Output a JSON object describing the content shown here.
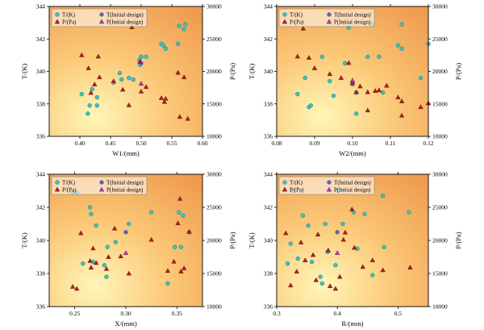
{
  "colors": {
    "temperature_marker": "#3cc4c0",
    "pressure_marker": "#b01e1e",
    "initial_T_marker": "#6a5acd",
    "initial_P_marker": "#b33cc8",
    "bg_inner": "#fff6b8",
    "bg_mid": "#fbc978",
    "bg_outer": "#ef9a4e"
  },
  "chart_data": [
    {
      "type": "scatter",
      "id": "w1",
      "xlabel": "W1/(mm)",
      "ylabel_left": "T/(K)",
      "ylabel_right": "P/(Pa)",
      "xlim": [
        0.35,
        0.6
      ],
      "xticks": [
        0.4,
        0.45,
        0.5,
        0.55,
        0.6
      ],
      "xtick_labels": [
        "0.40",
        "0.45",
        "0.50",
        "0.55",
        "0.60"
      ],
      "ylim_left": [
        336,
        344
      ],
      "yticks_left": [
        336,
        338,
        340,
        342,
        344
      ],
      "ytick_labels_left": [
        "336",
        "338",
        "340",
        "342",
        "344"
      ],
      "ylim_right": [
        10000,
        30000
      ],
      "yticks_right": [
        10000,
        15000,
        20000,
        25000,
        30000
      ],
      "ytick_labels_right": [
        "10000",
        "15000",
        "20000",
        "25000",
        "30000"
      ],
      "legend": [
        "T/(K)",
        "T(Initial design)",
        "P/(Pa)",
        "P(Initial design)"
      ],
      "legend_position": "top-left",
      "series": [
        {
          "name": "T/(K)",
          "axis": "left",
          "marker": "circle",
          "points": [
            [
              0.403,
              338.6
            ],
            [
              0.413,
              337.4
            ],
            [
              0.416,
              337.9
            ],
            [
              0.42,
              338.9
            ],
            [
              0.428,
              338.4
            ],
            [
              0.428,
              337.9
            ],
            [
              0.455,
              339.3
            ],
            [
              0.465,
              339.9
            ],
            [
              0.468,
              339.5
            ],
            [
              0.48,
              339.6
            ],
            [
              0.487,
              339.5
            ],
            [
              0.497,
              340.7
            ],
            [
              0.498,
              340.4
            ],
            [
              0.5,
              340.9
            ],
            [
              0.508,
              340.9
            ],
            [
              0.533,
              341.7
            ],
            [
              0.536,
              341.6
            ],
            [
              0.54,
              341.4
            ],
            [
              0.56,
              341.7
            ],
            [
              0.562,
              342.8
            ],
            [
              0.57,
              342.6
            ],
            [
              0.572,
              342.9
            ]
          ]
        },
        {
          "name": "T(Initial design)",
          "axis": "left",
          "marker": "circle",
          "points": [
            [
              0.5,
              340.5
            ]
          ]
        },
        {
          "name": "P/(Pa)",
          "axis": "right",
          "marker": "triangle",
          "points": [
            [
              0.403,
              22500
            ],
            [
              0.414,
              20500
            ],
            [
              0.418,
              16700
            ],
            [
              0.424,
              18000
            ],
            [
              0.43,
              22300
            ],
            [
              0.432,
              19100
            ],
            [
              0.455,
              18500
            ],
            [
              0.47,
              17200
            ],
            [
              0.48,
              14800
            ],
            [
              0.485,
              26800
            ],
            [
              0.498,
              21500
            ],
            [
              0.5,
              16900
            ],
            [
              0.508,
              17600
            ],
            [
              0.533,
              15900
            ],
            [
              0.538,
              15300
            ],
            [
              0.54,
              15800
            ],
            [
              0.56,
              19800
            ],
            [
              0.563,
              13000
            ],
            [
              0.57,
              19100
            ],
            [
              0.576,
              12700
            ]
          ]
        },
        {
          "name": "P(Initial design)",
          "axis": "right",
          "marker": "triangle",
          "points": [
            [
              0.5,
              18100
            ]
          ]
        }
      ]
    },
    {
      "type": "scatter",
      "id": "w2",
      "xlabel": "W2/(mm)",
      "ylabel_left": "T/(K)",
      "ylabel_right": "P/(Pa)",
      "xlim": [
        0.08,
        0.12
      ],
      "xticks": [
        0.08,
        0.09,
        0.1,
        0.11,
        0.12
      ],
      "xtick_labels": [
        "0.08",
        "0.09",
        "0.10",
        "0.11",
        "0.12"
      ],
      "ylim_left": [
        336,
        344
      ],
      "yticks_left": [
        336,
        338,
        340,
        342,
        344
      ],
      "ytick_labels_left": [
        "336",
        "338",
        "340",
        "342",
        "344"
      ],
      "ylim_right": [
        10000,
        30000
      ],
      "yticks_right": [
        10000,
        15000,
        20000,
        25000,
        30000
      ],
      "ytick_labels_right": [
        "10000",
        "15000",
        "20000",
        "25000",
        "30000"
      ],
      "legend": [
        "T/(K)",
        "T(Initial design)",
        "P/(Pa)",
        "P(Initial design)"
      ],
      "legend_position": "top-left",
      "series": [
        {
          "name": "T/(K)",
          "axis": "left",
          "marker": "circle",
          "points": [
            [
              0.0855,
              338.6
            ],
            [
              0.0875,
              339.6
            ],
            [
              0.0885,
              337.8
            ],
            [
              0.089,
              337.9
            ],
            [
              0.092,
              340.9
            ],
            [
              0.094,
              339.4
            ],
            [
              0.095,
              338.5
            ],
            [
              0.098,
              340.5
            ],
            [
              0.099,
              342.7
            ],
            [
              0.1,
              339.2
            ],
            [
              0.101,
              338.7
            ],
            [
              0.101,
              337.4
            ],
            [
              0.104,
              340.9
            ],
            [
              0.105,
              342.9
            ],
            [
              0.107,
              340.9
            ],
            [
              0.108,
              338.7
            ],
            [
              0.112,
              341.6
            ],
            [
              0.113,
              342.9
            ],
            [
              0.113,
              341.4
            ],
            [
              0.118,
              339.6
            ],
            [
              0.12,
              341.7
            ]
          ]
        },
        {
          "name": "T(Initial design)",
          "axis": "left",
          "marker": "circle",
          "points": [
            [
              0.1,
              339.3
            ]
          ]
        },
        {
          "name": "P/(Pa)",
          "axis": "right",
          "marker": "triangle",
          "points": [
            [
              0.0855,
              22300
            ],
            [
              0.087,
              26600
            ],
            [
              0.0885,
              22100
            ],
            [
              0.09,
              20500
            ],
            [
              0.094,
              19600
            ],
            [
              0.097,
              19000
            ],
            [
              0.099,
              21300
            ],
            [
              0.101,
              16800
            ],
            [
              0.102,
              17700
            ],
            [
              0.104,
              14000
            ],
            [
              0.104,
              16800
            ],
            [
              0.106,
              17000
            ],
            [
              0.107,
              17100
            ],
            [
              0.109,
              17800
            ],
            [
              0.112,
              16000
            ],
            [
              0.113,
              13200
            ],
            [
              0.113,
              15400
            ],
            [
              0.118,
              14500
            ],
            [
              0.12,
              15100
            ],
            [
              0.1,
              18200
            ]
          ]
        },
        {
          "name": "P(Initial design)",
          "axis": "right",
          "marker": "triangle",
          "points": [
            [
              0.1,
              18600
            ]
          ]
        }
      ]
    },
    {
      "type": "scatter",
      "id": "x",
      "xlabel": "X/(mm)",
      "ylabel_left": "T/(K)",
      "ylabel_right": "P/(Pa)",
      "xlim": [
        0.225,
        0.375
      ],
      "xticks": [
        0.25,
        0.3,
        0.35
      ],
      "xtick_labels": [
        "0.25",
        "0.30",
        "0.35"
      ],
      "ylim_left": [
        336,
        344
      ],
      "yticks_left": [
        336,
        338,
        340,
        342,
        344
      ],
      "ytick_labels_left": [
        "336",
        "338",
        "340",
        "342",
        "344"
      ],
      "ylim_right": [
        10000,
        30000
      ],
      "yticks_right": [
        10000,
        15000,
        20000,
        25000,
        30000
      ],
      "ytick_labels_right": [
        "10000",
        "15000",
        "20000",
        "25000",
        "30000"
      ],
      "legend": [
        "T/(K)",
        "T(Initial design)",
        "P/(Pa)",
        "P(Initial design)"
      ],
      "legend_position": "top-left",
      "series": [
        {
          "name": "T/(K)",
          "axis": "left",
          "marker": "circle",
          "points": [
            [
              0.248,
              342.9
            ],
            [
              0.252,
              342.9
            ],
            [
              0.258,
              338.6
            ],
            [
              0.265,
              342.0
            ],
            [
              0.266,
              341.6
            ],
            [
              0.268,
              338.7
            ],
            [
              0.271,
              340.9
            ],
            [
              0.279,
              338.5
            ],
            [
              0.281,
              337.8
            ],
            [
              0.282,
              339.6
            ],
            [
              0.29,
              339.9
            ],
            [
              0.303,
              341.0
            ],
            [
              0.325,
              341.7
            ],
            [
              0.341,
              337.4
            ],
            [
              0.348,
              339.6
            ],
            [
              0.352,
              341.7
            ],
            [
              0.354,
              339.6
            ],
            [
              0.356,
              341.5
            ],
            [
              0.362,
              340.5
            ]
          ]
        },
        {
          "name": "T(Initial design)",
          "axis": "left",
          "marker": "circle",
          "points": [
            [
              0.3,
              340.5
            ]
          ]
        },
        {
          "name": "P/(Pa)",
          "axis": "right",
          "marker": "triangle",
          "points": [
            [
              0.248,
              13000
            ],
            [
              0.252,
              12700
            ],
            [
              0.256,
              21100
            ],
            [
              0.265,
              16900
            ],
            [
              0.266,
              15900
            ],
            [
              0.268,
              18800
            ],
            [
              0.271,
              16600
            ],
            [
              0.281,
              15700
            ],
            [
              0.283,
              17500
            ],
            [
              0.289,
              21800
            ],
            [
              0.295,
              17600
            ],
            [
              0.303,
              15000
            ],
            [
              0.325,
              20100
            ],
            [
              0.341,
              15400
            ],
            [
              0.347,
              16800
            ],
            [
              0.351,
              22600
            ],
            [
              0.353,
              26300
            ],
            [
              0.354,
              15300
            ],
            [
              0.357,
              15800
            ],
            [
              0.362,
              21300
            ]
          ]
        },
        {
          "name": "P(Initial design)",
          "axis": "right",
          "marker": "triangle",
          "points": [
            [
              0.3,
              18100
            ]
          ]
        }
      ]
    },
    {
      "type": "scatter",
      "id": "r",
      "xlabel": "R/(mm)",
      "ylabel_left": "T/(K)",
      "ylabel_right": "P/(Pa)",
      "xlim": [
        0.3,
        0.55
      ],
      "xticks": [
        0.3,
        0.4,
        0.5
      ],
      "xtick_labels": [
        "0.3",
        "0.4",
        "0.5"
      ],
      "ylim_left": [
        336,
        344
      ],
      "yticks_left": [
        336,
        338,
        340,
        342,
        344
      ],
      "ytick_labels_left": [
        "336",
        "338",
        "340",
        "342",
        "344"
      ],
      "ylim_right": [
        10000,
        30000
      ],
      "yticks_right": [
        10000,
        15000,
        20000,
        25000,
        30000
      ],
      "ytick_labels_right": [
        "10000",
        "15000",
        "20000",
        "25000",
        "30000"
      ],
      "legend": [
        "T/(K)",
        "T(Initial design)",
        "P/(Pa)",
        "P(Initial design)"
      ],
      "legend_position": "top-left",
      "series": [
        {
          "name": "T/(K)",
          "axis": "left",
          "marker": "circle",
          "points": [
            [
              0.318,
              338.6
            ],
            [
              0.323,
              339.8
            ],
            [
              0.327,
              343.0
            ],
            [
              0.335,
              338.9
            ],
            [
              0.343,
              341.5
            ],
            [
              0.352,
              340.9
            ],
            [
              0.358,
              338.7
            ],
            [
              0.372,
              337.8
            ],
            [
              0.375,
              337.4
            ],
            [
              0.38,
              341.0
            ],
            [
              0.384,
              339.3
            ],
            [
              0.397,
              338.5
            ],
            [
              0.401,
              343.0
            ],
            [
              0.409,
              341.0
            ],
            [
              0.427,
              341.7
            ],
            [
              0.433,
              339.5
            ],
            [
              0.445,
              341.6
            ],
            [
              0.458,
              337.9
            ],
            [
              0.475,
              342.7
            ],
            [
              0.477,
              339.6
            ],
            [
              0.518,
              341.7
            ]
          ]
        },
        {
          "name": "T(Initial design)",
          "axis": "left",
          "marker": "circle",
          "points": [
            [
              0.4,
              340.5
            ]
          ]
        },
        {
          "name": "P/(Pa)",
          "axis": "right",
          "marker": "triangle",
          "points": [
            [
              0.315,
              21100
            ],
            [
              0.323,
              13200
            ],
            [
              0.333,
              15300
            ],
            [
              0.34,
              19700
            ],
            [
              0.347,
              17000
            ],
            [
              0.36,
              17800
            ],
            [
              0.365,
              14000
            ],
            [
              0.368,
              20900
            ],
            [
              0.385,
              18500
            ],
            [
              0.388,
              13100
            ],
            [
              0.397,
              12700
            ],
            [
              0.404,
              14500
            ],
            [
              0.41,
              20100
            ],
            [
              0.413,
              21200
            ],
            [
              0.424,
              24700
            ],
            [
              0.428,
              18900
            ],
            [
              0.442,
              16000
            ],
            [
              0.458,
              17000
            ],
            [
              0.475,
              15500
            ],
            [
              0.52,
              15900
            ]
          ]
        },
        {
          "name": "P(Initial design)",
          "axis": "right",
          "marker": "triangle",
          "points": [
            [
              0.4,
              18100
            ]
          ]
        }
      ]
    }
  ]
}
